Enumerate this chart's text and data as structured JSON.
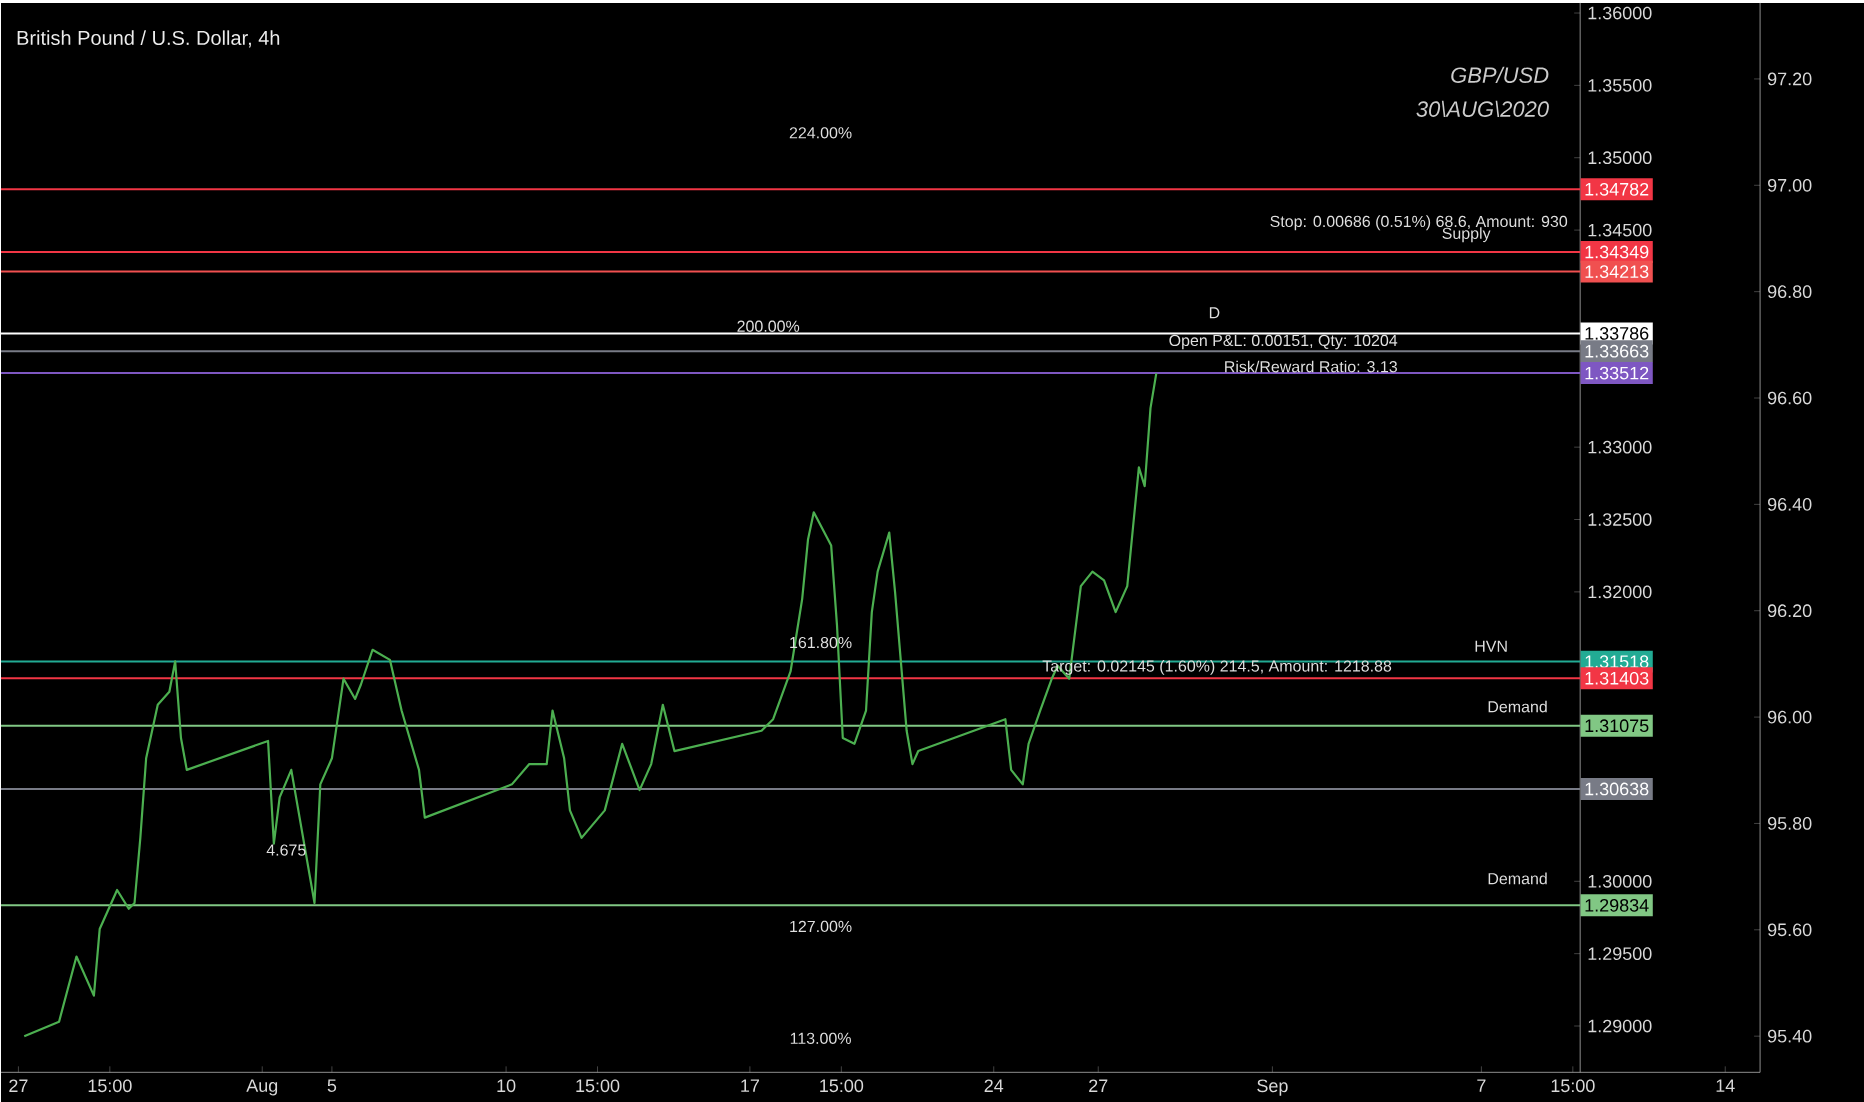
{
  "chart_data": {
    "type": "line",
    "title": "British Pound / U.S. Dollar, 4h",
    "subtitle": "GBP/USD",
    "x": [
      "2020-07-27T04:00",
      "2020-07-28T04:00",
      "2020-07-28T16:00",
      "2020-07-29T04:00",
      "2020-07-29T08:00",
      "2020-07-29T20:00",
      "2020-07-30T04:00",
      "2020-07-30T08:00",
      "2020-07-30T12:00",
      "2020-07-30T16:00",
      "2020-07-31T00:00",
      "2020-07-31T08:00",
      "2020-07-31T12:00",
      "2020-07-31T16:00",
      "2020-07-31T20:00",
      "2020-08-03T04:00",
      "2020-08-03T08:00",
      "2020-08-03T12:00",
      "2020-08-03T20:00",
      "2020-08-04T12:00",
      "2020-08-04T16:00",
      "2020-08-05T00:00",
      "2020-08-05T08:00",
      "2020-08-05T16:00",
      "2020-08-05T20:00",
      "2020-08-06T04:00",
      "2020-08-06T16:00",
      "2020-08-07T00:00",
      "2020-08-07T12:00",
      "2020-08-07T16:00",
      "2020-08-10T04:00",
      "2020-08-10T16:00",
      "2020-08-11T04:00",
      "2020-08-11T08:00",
      "2020-08-11T16:00",
      "2020-08-11T20:00",
      "2020-08-12T04:00",
      "2020-08-12T20:00",
      "2020-08-13T08:00",
      "2020-08-13T20:00",
      "2020-08-14T04:00",
      "2020-08-14T12:00",
      "2020-08-14T20:00",
      "2020-08-17T08:00",
      "2020-08-17T16:00",
      "2020-08-18T04:00",
      "2020-08-18T12:00",
      "2020-08-18T16:00",
      "2020-08-18T20:00",
      "2020-08-19T08:00",
      "2020-08-19T12:00",
      "2020-08-19T16:00",
      "2020-08-20T00:00",
      "2020-08-20T08:00",
      "2020-08-20T12:00",
      "2020-08-20T16:00",
      "2020-08-21T00:00",
      "2020-08-21T04:00",
      "2020-08-21T12:00",
      "2020-08-21T16:00",
      "2020-08-21T20:00",
      "2020-08-24T08:00",
      "2020-08-24T12:00",
      "2020-08-24T20:00",
      "2020-08-25T00:00",
      "2020-08-25T08:00",
      "2020-08-25T16:00",
      "2020-08-25T20:00",
      "2020-08-26T04:00",
      "2020-08-26T12:00",
      "2020-08-26T20:00",
      "2020-08-27T04:00",
      "2020-08-27T12:00",
      "2020-08-27T20:00",
      "2020-08-28T00:00",
      "2020-08-28T04:00",
      "2020-08-28T08:00",
      "2020-08-28T12:00",
      "2020-08-28T16:00"
    ],
    "series": [
      {
        "color": "#4caf50",
        "values": [
          1.2893,
          1.2903,
          1.2948,
          1.2921,
          1.2967,
          1.2994,
          1.2981,
          1.2985,
          1.303,
          1.3085,
          1.3122,
          1.3131,
          1.3152,
          1.3099,
          1.3077,
          1.3097,
          1.3026,
          1.3058,
          1.3077,
          1.2985,
          1.3067,
          1.3085,
          1.314,
          1.3126,
          1.3136,
          1.316,
          1.3153,
          1.3118,
          1.3077,
          1.3044,
          1.3067,
          1.3081,
          1.3081,
          1.3118,
          1.3085,
          1.3049,
          1.303,
          1.3049,
          1.3095,
          1.3063,
          1.3081,
          1.3122,
          1.309,
          1.3104,
          1.3112,
          1.3145,
          1.3195,
          1.3236,
          1.3255,
          1.3232,
          1.3177,
          1.3099,
          1.3095,
          1.3118,
          1.3186,
          1.3214,
          1.3241,
          1.32,
          1.3104,
          1.3081,
          1.309,
          1.3112,
          1.3077,
          1.3067,
          1.3095,
          1.3118,
          1.314,
          1.3149,
          1.314,
          1.3204,
          1.3214,
          1.3208,
          1.3186,
          1.3204,
          1.3245,
          1.3286,
          1.3273,
          1.3327,
          1.3351
        ]
      }
    ],
    "marker": "none",
    "xlim": [
      "2020-07-26T12:00",
      "2020-09-15T00:00"
    ],
    "xticks": [
      {
        "value": "2020-07-27",
        "label": "27"
      },
      {
        "value": "2020-07-29T15:00",
        "label": "15:00"
      },
      {
        "value": "2020-08-03",
        "label": "Aug"
      },
      {
        "value": "2020-08-05",
        "label": "5"
      },
      {
        "value": "2020-08-10",
        "label": "10"
      },
      {
        "value": "2020-08-12T15:00",
        "label": "15:00"
      },
      {
        "value": "2020-08-17",
        "label": "17"
      },
      {
        "value": "2020-08-19T15:00",
        "label": "15:00"
      },
      {
        "value": "2020-08-24",
        "label": "24"
      },
      {
        "value": "2020-08-27",
        "label": "27"
      },
      {
        "value": "2020-09-01",
        "label": "Sep"
      },
      {
        "value": "2020-09-07",
        "label": "7"
      },
      {
        "value": "2020-09-09T15:00",
        "label": "15:00"
      },
      {
        "value": "2020-09-14",
        "label": "14"
      }
    ],
    "ylim": [
      1.2868,
      1.3607
    ],
    "yticks": [
      {
        "value": 1.29,
        "label": "1.29000"
      },
      {
        "value": 1.295,
        "label": "1.29500"
      },
      {
        "value": 1.3,
        "label": "1.30000"
      },
      {
        "value": 1.32,
        "label": "1.32000"
      },
      {
        "value": 1.325,
        "label": "1.32500"
      },
      {
        "value": 1.33,
        "label": "1.33000"
      },
      {
        "value": 1.345,
        "label": "1.34500"
      },
      {
        "value": 1.35,
        "label": "1.35000"
      },
      {
        "value": 1.355,
        "label": "1.35500"
      },
      {
        "value": 1.36,
        "label": "1.36000"
      }
    ],
    "y2lim": [
      95.332,
      97.343
    ],
    "y2ticks": [
      {
        "value": 95.4,
        "label": "95.40"
      },
      {
        "value": 95.6,
        "label": "95.60"
      },
      {
        "value": 95.8,
        "label": "95.80"
      },
      {
        "value": 96.0,
        "label": "96.00"
      },
      {
        "value": 96.2,
        "label": "96.20"
      },
      {
        "value": 96.4,
        "label": "96.40"
      },
      {
        "value": 96.6,
        "label": "96.60"
      },
      {
        "value": 96.8,
        "label": "96.80"
      },
      {
        "value": 97.0,
        "label": "97.00"
      },
      {
        "value": 97.2,
        "label": "97.20"
      }
    ],
    "ref_lines": [
      {
        "axis": "y",
        "value": 1.34782,
        "label": "1.34782",
        "color": "#f23645"
      },
      {
        "axis": "y",
        "value": 1.34349,
        "label": "1.34349",
        "color": "#f23645"
      },
      {
        "axis": "y",
        "value": 1.34213,
        "label": "1.34213",
        "color": "#f05050"
      },
      {
        "axis": "y",
        "value": 1.33786,
        "label": "1.33786",
        "color": "#ffffff"
      },
      {
        "axis": "y",
        "value": 1.33663,
        "label": "1.33663",
        "color": "#787b86"
      },
      {
        "axis": "y",
        "value": 1.33512,
        "label": "1.33512",
        "color": "#7e57c2"
      },
      {
        "axis": "y",
        "value": 1.31518,
        "label": "1.31518",
        "color": "#22ab94"
      },
      {
        "axis": "y",
        "value": 1.31403,
        "label": "1.31403",
        "color": "#f23645"
      },
      {
        "axis": "y",
        "value": 1.31075,
        "label": "1.31075",
        "color": "#81c784"
      },
      {
        "axis": "y",
        "value": 1.30638,
        "label": "1.30638",
        "color": "#787b86"
      },
      {
        "axis": "y",
        "value": 1.29834,
        "label": "1.29834",
        "color": "#81c784"
      }
    ],
    "annotations": [
      "30\\AUG\\2020",
      "224.00%",
      {
        "text": "200.00%",
        "x": "2020-08-18T12:00",
        "y": 1.3378
      },
      "161.80%",
      "127.00%",
      "113.00%",
      "D",
      {
        "text": "4.675",
        "x": "2020-08-04T08:00",
        "y": 1.3016
      },
      "Stop: 0.00686 (0.51%) 68.6, Amount: 930",
      {
        "text": "Open P&L: 0.00151, Qty: 10204",
        "x": "2020-09-04T16:00",
        "y": 1.3366
      },
      {
        "text": "Risk/Reward Ratio: 3.13",
        "x": "2020-09-04T16:00",
        "y": 1.335
      },
      {
        "text": "Target: 0.02145 (1.60%) 214.5, Amount: 1218.88",
        "x": "2020-09-04T12:00",
        "y": 1.3141
      },
      {
        "text": "Supply",
        "x": "2020-09-07T08:00",
        "y": 1.344
      },
      {
        "text": "HVN",
        "x": "2020-09-07T20:00",
        "y": 1.3157
      },
      "Demand",
      "Demand"
    ]
  }
}
